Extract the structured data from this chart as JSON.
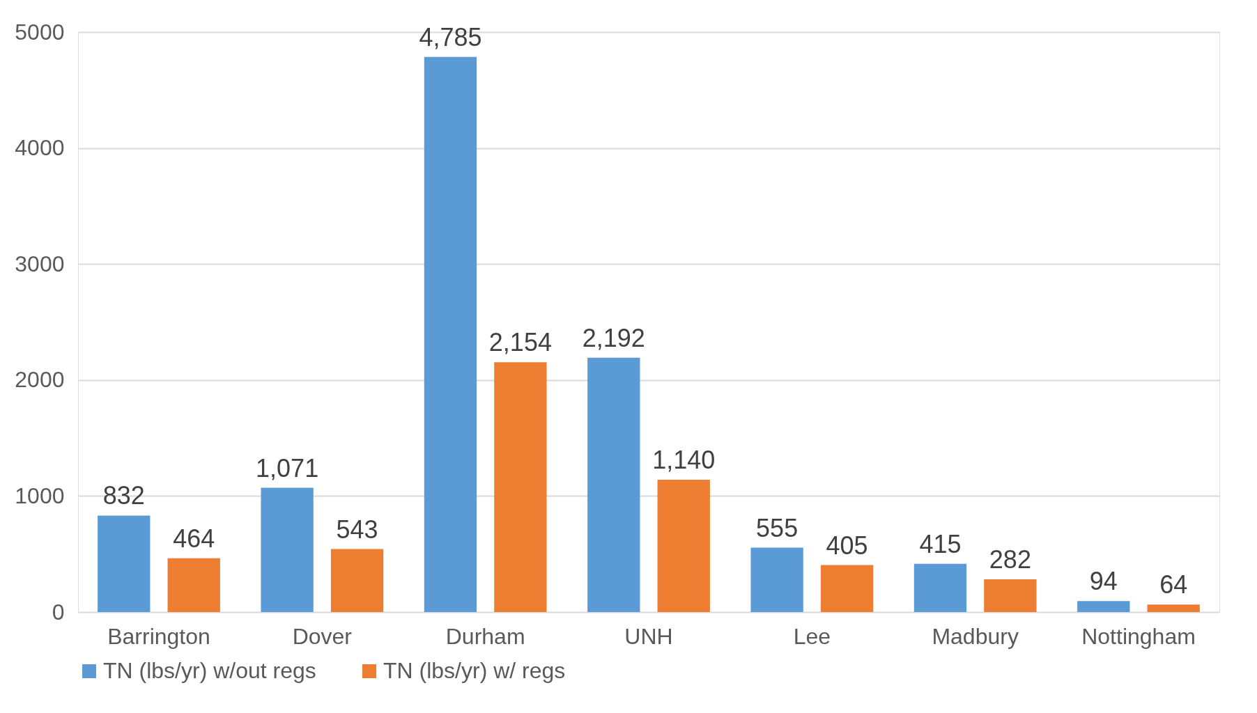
{
  "chart_data": {
    "type": "bar",
    "categories": [
      "Barrington",
      "Dover",
      "Durham",
      "UNH",
      "Lee",
      "Madbury",
      "Nottingham"
    ],
    "series": [
      {
        "name": "TN (lbs/yr) w/out regs",
        "color": "#5b9bd5",
        "values": [
          832,
          1071,
          4785,
          2192,
          555,
          415,
          94
        ],
        "value_labels": [
          "832",
          "1,071",
          "4,785",
          "2,192",
          "555",
          "415",
          "94"
        ]
      },
      {
        "name": "TN (lbs/yr) w/ regs",
        "color": "#ed7d31",
        "values": [
          464,
          543,
          2154,
          1140,
          405,
          282,
          64
        ],
        "value_labels": [
          "464",
          "543",
          "2,154",
          "1,140",
          "405",
          "282",
          "64"
        ]
      }
    ],
    "ylim": [
      0,
      5000
    ],
    "yticks": [
      0,
      1000,
      2000,
      3000,
      4000,
      5000
    ],
    "grid": "y",
    "legend": "bottom"
  }
}
